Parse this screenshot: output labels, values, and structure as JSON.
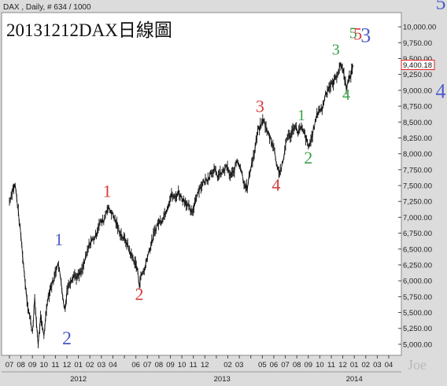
{
  "header": {
    "info": "DAX , Daily, # 634 / 1000",
    "title": "20131212DAX日線圖"
  },
  "chart_data": {
    "type": "line",
    "ylim": [
      4900,
      10150
    ],
    "y_ticks": [
      "5,000.00",
      "5,250.00",
      "5,500.00",
      "5,750.00",
      "6,000.00",
      "6,250.00",
      "6,500.00",
      "6,750.00",
      "7,000.00",
      "7,250.00",
      "7,500.00",
      "7,750.00",
      "8,000.00",
      "8,250.00",
      "8,500.00",
      "8,750.00",
      "9,000.00",
      "9,250.00",
      "9,500.00",
      "9,750.00",
      "10,000.00"
    ],
    "y_tick_values": [
      5000,
      5250,
      5500,
      5750,
      6000,
      6250,
      6500,
      6750,
      7000,
      7250,
      7500,
      7750,
      8000,
      8250,
      8500,
      8750,
      9000,
      9250,
      9500,
      9750,
      10000
    ],
    "last_price": "9,400.18",
    "last_price_value": 9400.18,
    "x_month_labels": [
      "07",
      "08",
      "09",
      "10",
      "11",
      "12",
      "01",
      "02",
      "03",
      "04",
      "",
      "06",
      "07",
      "08",
      "09",
      "10",
      "11",
      "12",
      "",
      "02",
      "03",
      "",
      "05",
      "06",
      "07",
      "08",
      "09",
      "10",
      "11",
      "12",
      "01",
      "02",
      "03",
      "04"
    ],
    "x_year_labels": [
      {
        "label": "2012",
        "index": 6
      },
      {
        "label": "2013",
        "index": 18.5
      },
      {
        "label": "2014",
        "index": 30
      }
    ],
    "series": [
      {
        "points": [
          [
            0,
            7250
          ],
          [
            0.3,
            7450
          ],
          [
            0.5,
            7500
          ],
          [
            0.7,
            7200
          ],
          [
            1.0,
            6700
          ],
          [
            1.3,
            6100
          ],
          [
            1.6,
            5600
          ],
          [
            2.0,
            5200
          ],
          [
            2.2,
            5700
          ],
          [
            2.5,
            5000
          ],
          [
            2.7,
            5400
          ],
          [
            3.0,
            5150
          ],
          [
            3.3,
            5700
          ],
          [
            3.6,
            5900
          ],
          [
            3.9,
            6050
          ],
          [
            4.2,
            6300
          ],
          [
            4.5,
            6000
          ],
          [
            4.7,
            5650
          ],
          [
            4.85,
            5550
          ],
          [
            5.0,
            5850
          ],
          [
            5.3,
            6000
          ],
          [
            5.6,
            6100
          ],
          [
            5.9,
            6050
          ],
          [
            6.3,
            6150
          ],
          [
            6.7,
            6400
          ],
          [
            7.0,
            6600
          ],
          [
            7.5,
            6700
          ],
          [
            7.8,
            6900
          ],
          [
            8.2,
            6950
          ],
          [
            8.5,
            7150
          ],
          [
            8.8,
            7100
          ],
          [
            9.1,
            7000
          ],
          [
            9.5,
            6800
          ],
          [
            9.8,
            6700
          ],
          [
            10.2,
            6600
          ],
          [
            10.6,
            6400
          ],
          [
            10.9,
            6300
          ],
          [
            11.1,
            6200
          ],
          [
            11.3,
            5950
          ],
          [
            11.5,
            6100
          ],
          [
            11.8,
            6200
          ],
          [
            12.0,
            6400
          ],
          [
            12.3,
            6550
          ],
          [
            12.6,
            6750
          ],
          [
            12.9,
            6900
          ],
          [
            13.2,
            6950
          ],
          [
            13.5,
            7050
          ],
          [
            13.8,
            7200
          ],
          [
            14.1,
            7350
          ],
          [
            14.4,
            7300
          ],
          [
            14.7,
            7400
          ],
          [
            15.0,
            7300
          ],
          [
            15.3,
            7250
          ],
          [
            15.6,
            7150
          ],
          [
            15.9,
            7050
          ],
          [
            16.2,
            7300
          ],
          [
            16.5,
            7450
          ],
          [
            16.9,
            7550
          ],
          [
            17.2,
            7600
          ],
          [
            17.5,
            7700
          ],
          [
            17.8,
            7750
          ],
          [
            18.1,
            7650
          ],
          [
            18.5,
            7700
          ],
          [
            18.9,
            7800
          ],
          [
            19.2,
            7650
          ],
          [
            19.5,
            7700
          ],
          [
            19.8,
            7900
          ],
          [
            20.1,
            7800
          ],
          [
            20.4,
            7550
          ],
          [
            20.7,
            7450
          ],
          [
            21.0,
            7800
          ],
          [
            21.3,
            8000
          ],
          [
            21.6,
            8350
          ],
          [
            21.9,
            8450
          ],
          [
            22.1,
            8550
          ],
          [
            22.4,
            8350
          ],
          [
            22.7,
            8250
          ],
          [
            23.0,
            8100
          ],
          [
            23.3,
            7800
          ],
          [
            23.5,
            7700
          ],
          [
            23.8,
            7850
          ],
          [
            24.1,
            8250
          ],
          [
            24.5,
            8300
          ],
          [
            24.8,
            8450
          ],
          [
            25.1,
            8350
          ],
          [
            25.4,
            8400
          ],
          [
            25.7,
            8300
          ],
          [
            26.0,
            8100
          ],
          [
            26.3,
            8250
          ],
          [
            26.6,
            8500
          ],
          [
            26.9,
            8700
          ],
          [
            27.2,
            8700
          ],
          [
            27.5,
            8950
          ],
          [
            27.8,
            9050
          ],
          [
            28.1,
            9100
          ],
          [
            28.4,
            9200
          ],
          [
            28.7,
            9350
          ],
          [
            28.9,
            9400
          ],
          [
            29.1,
            9250
          ],
          [
            29.3,
            9050
          ],
          [
            29.5,
            9150
          ],
          [
            29.7,
            9250
          ],
          [
            29.9,
            9400
          ]
        ]
      }
    ],
    "annotations": [
      {
        "text": "1",
        "color": "#4f5fc8",
        "x": 4.3,
        "y": 6560,
        "size": 22
      },
      {
        "text": "2",
        "color": "#4f5fc8",
        "x": 5.0,
        "y": 5000,
        "size": 24
      },
      {
        "text": "1",
        "color": "#d83a3a",
        "x": 8.5,
        "y": 7320,
        "size": 22
      },
      {
        "text": "2",
        "color": "#d83a3a",
        "x": 11.3,
        "y": 5700,
        "size": 22
      },
      {
        "text": "3",
        "color": "#d83a3a",
        "x": 21.8,
        "y": 8660,
        "size": 22
      },
      {
        "text": "4",
        "color": "#d83a3a",
        "x": 23.2,
        "y": 7420,
        "size": 22
      },
      {
        "text": "1",
        "color": "#3aa04a",
        "x": 25.4,
        "y": 8530,
        "size": 20
      },
      {
        "text": "2",
        "color": "#3aa04a",
        "x": 26.0,
        "y": 7850,
        "size": 22
      },
      {
        "text": "3",
        "color": "#3aa04a",
        "x": 28.4,
        "y": 9560,
        "size": 20
      },
      {
        "text": "4",
        "color": "#3aa04a",
        "x": 29.3,
        "y": 8850,
        "size": 20
      },
      {
        "text": "5",
        "color": "#3aa04a",
        "x": 29.9,
        "y": 9820,
        "size": 20
      },
      {
        "text": "5",
        "color": "#d83a3a",
        "x": 30.3,
        "y": 9800,
        "size": 22
      },
      {
        "text": "3",
        "color": "#4f5fc8",
        "x": 31.0,
        "y": 9760,
        "size": 26
      }
    ],
    "side_labels": [
      {
        "text": "5",
        "color": "#4f5fc8",
        "y": 10280
      },
      {
        "text": "4",
        "color": "#4f5fc8",
        "y": 8880
      }
    ],
    "watermark": "Joe"
  }
}
